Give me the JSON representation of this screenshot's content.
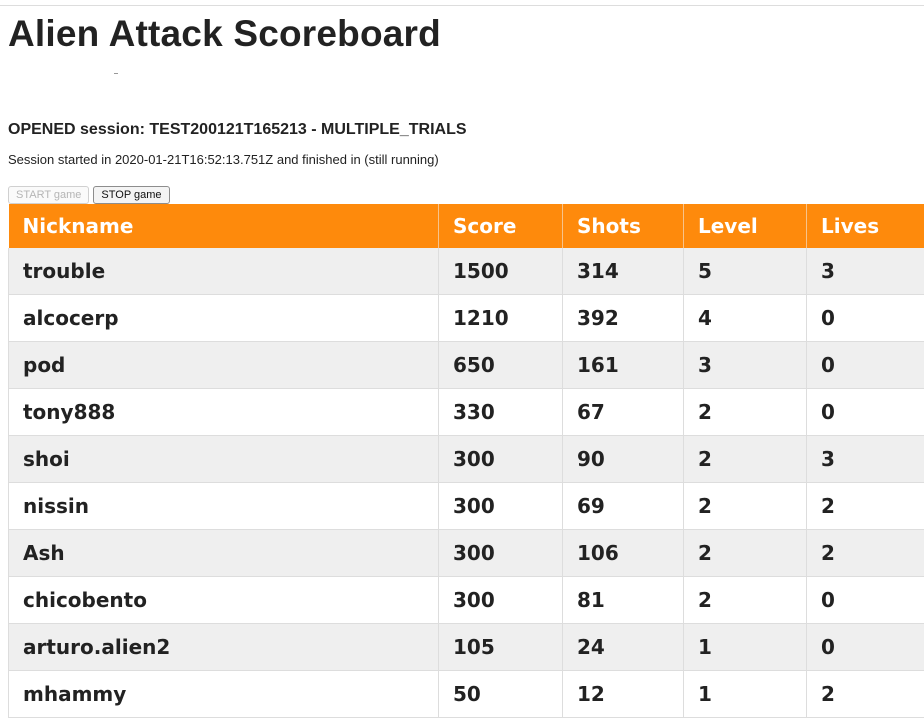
{
  "page": {
    "title": "Alien Attack Scoreboard"
  },
  "session": {
    "status_line": "OPENED session: TEST200121T165213 - MULTIPLE_TRIALS",
    "info_line": "Session started in 2020-01-21T16:52:13.751Z and finished in (still running)"
  },
  "controls": {
    "start_label": "START game",
    "stop_label": "STOP game"
  },
  "table": {
    "headers": [
      "Nickname",
      "Score",
      "Shots",
      "Level",
      "Lives"
    ],
    "rows": [
      [
        "trouble",
        "1500",
        "314",
        "5",
        "3"
      ],
      [
        "alcocerp",
        "1210",
        "392",
        "4",
        "0"
      ],
      [
        "pod",
        "650",
        "161",
        "3",
        "0"
      ],
      [
        "tony888",
        "330",
        "67",
        "2",
        "0"
      ],
      [
        "shoi",
        "300",
        "90",
        "2",
        "3"
      ],
      [
        "nissin",
        "300",
        "69",
        "2",
        "2"
      ],
      [
        "Ash",
        "300",
        "106",
        "2",
        "2"
      ],
      [
        "chicobento",
        "300",
        "81",
        "2",
        "0"
      ],
      [
        "arturo.alien2",
        "105",
        "24",
        "1",
        "0"
      ],
      [
        "mhammy",
        "50",
        "12",
        "1",
        "2"
      ]
    ]
  },
  "colors": {
    "header_bg": "#fe8a0c",
    "row_alt_bg": "#efefef"
  }
}
